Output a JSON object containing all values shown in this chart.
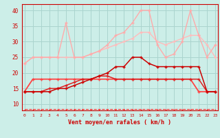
{
  "xlabel": "Vent moyen/en rafales ( km/h )",
  "x": [
    0,
    1,
    2,
    3,
    4,
    5,
    6,
    7,
    8,
    9,
    10,
    11,
    12,
    13,
    14,
    15,
    16,
    17,
    18,
    19,
    20,
    21,
    22,
    23
  ],
  "bg_color": "#cceee8",
  "grid_color": "#aad4ce",
  "lines": [
    {
      "y": [
        23,
        25,
        25,
        25,
        25,
        25,
        25,
        25,
        26,
        27,
        28,
        29,
        30,
        31,
        33,
        33,
        30,
        29,
        30,
        31,
        32,
        32,
        29,
        25
      ],
      "color": "#ffbbbb",
      "lw": 1.0,
      "marker": "+"
    },
    {
      "y": [
        23,
        25,
        25,
        25,
        25,
        36,
        25,
        25,
        26,
        27,
        29,
        32,
        33,
        36,
        40,
        40,
        29,
        25,
        26,
        30,
        40,
        32,
        25,
        29
      ],
      "color": "#ffaaaa",
      "lw": 1.0,
      "marker": "+"
    },
    {
      "y": [
        14,
        18,
        18,
        18,
        18,
        18,
        18,
        18,
        18,
        18,
        18,
        18,
        18,
        18,
        18,
        18,
        18,
        18,
        18,
        18,
        18,
        14,
        14,
        14
      ],
      "color": "#ff4444",
      "lw": 1.3,
      "marker": "+"
    },
    {
      "y": [
        14,
        14,
        14,
        15,
        15,
        16,
        17,
        18,
        18,
        19,
        19,
        18,
        18,
        18,
        18,
        18,
        18,
        18,
        18,
        18,
        18,
        18,
        14,
        14
      ],
      "color": "#dd2222",
      "lw": 1.1,
      "marker": "+"
    },
    {
      "y": [
        14,
        14,
        14,
        14,
        15,
        15,
        16,
        17,
        18,
        19,
        20,
        22,
        22,
        25,
        25,
        23,
        22,
        22,
        22,
        22,
        22,
        22,
        14,
        14
      ],
      "color": "#cc0000",
      "lw": 1.1,
      "marker": "+"
    },
    {
      "y": [
        8.5,
        8.5,
        8.5,
        8.5,
        8.5,
        8.5,
        8.5,
        8.5,
        8.5,
        8.5,
        8.5,
        8.5,
        8.5,
        8.5,
        8.5,
        8.5,
        8.5,
        8.5,
        8.5,
        8.5,
        8.5,
        8.5,
        8.5,
        8.5
      ],
      "color": "#ff3333",
      "lw": 0.8,
      "marker": 3,
      "markersize": 3,
      "linestyle": "--"
    }
  ],
  "ylim": [
    8,
    42
  ],
  "yticks": [
    10,
    15,
    20,
    25,
    30,
    35,
    40
  ],
  "xlim": [
    -0.3,
    23.3
  ],
  "xticks": [
    0,
    1,
    2,
    3,
    4,
    5,
    6,
    7,
    8,
    9,
    10,
    11,
    12,
    13,
    14,
    15,
    16,
    17,
    18,
    19,
    20,
    21,
    22,
    23
  ]
}
